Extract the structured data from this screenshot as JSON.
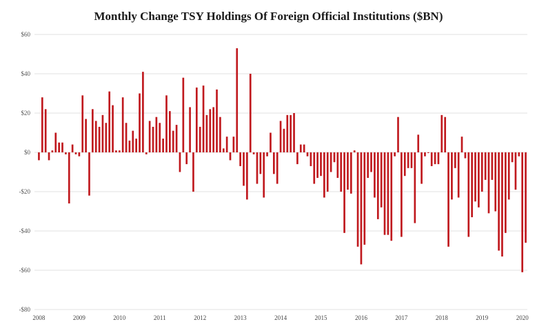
{
  "chart_data": {
    "type": "bar",
    "title": "Monthly Change TSY Holdings Of Foreign Official Institutions ($BN)",
    "xlabel": "",
    "ylabel": "",
    "ylim": [
      -80,
      60
    ],
    "yticks": [
      60,
      40,
      20,
      0,
      -20,
      -40,
      -60,
      -80
    ],
    "ytick_labels": [
      "$60",
      "$40",
      "$20",
      "$0",
      "-$20",
      "-$40",
      "-$60",
      "-$80"
    ],
    "xtick_labels": [
      "2008",
      "2009",
      "2010",
      "2011",
      "2012",
      "2013",
      "2014",
      "2015",
      "2016",
      "2017",
      "2018",
      "2019",
      "2020"
    ],
    "grid": true,
    "bar_color": "#c0191e",
    "first_period": "2008-01",
    "series": [
      {
        "values": [
          -4,
          28,
          22,
          -4,
          1,
          10,
          5,
          5,
          -1,
          -26,
          4,
          -1,
          -2,
          29,
          17,
          -22,
          22,
          16,
          13,
          19,
          15,
          31,
          24,
          1,
          1,
          28,
          15,
          6,
          11,
          7,
          30,
          41,
          -1,
          16,
          13,
          18,
          15,
          7,
          29,
          21,
          11,
          14,
          -10,
          38,
          -6,
          23,
          -20,
          33,
          13,
          34,
          19,
          22,
          23,
          32,
          18,
          2,
          8,
          -4,
          8,
          53,
          -7,
          -17,
          -24,
          40,
          -1,
          -16,
          -11,
          -23,
          -2,
          10,
          -11,
          -16,
          16,
          12,
          19,
          19,
          20,
          -6,
          4,
          4,
          -2,
          -7,
          -16,
          -13,
          -12,
          -23,
          -20,
          -10,
          -5,
          -13,
          -20,
          -41,
          -19,
          -21,
          1,
          -48,
          -57,
          -47,
          -13,
          -10,
          -23,
          -34,
          -28,
          -42,
          -42,
          -45,
          -2,
          18,
          -43,
          -12,
          -8,
          -8,
          -36,
          9,
          -16,
          -2,
          0,
          -7,
          -6,
          -6,
          19,
          18,
          -48,
          -24,
          -8,
          -23,
          8,
          -3,
          -43,
          -33,
          -25,
          -28,
          -20,
          -14,
          -31,
          -14,
          -30,
          -50,
          -53,
          -41,
          -24,
          -5,
          -19,
          -2,
          -61,
          -46
        ]
      }
    ]
  }
}
